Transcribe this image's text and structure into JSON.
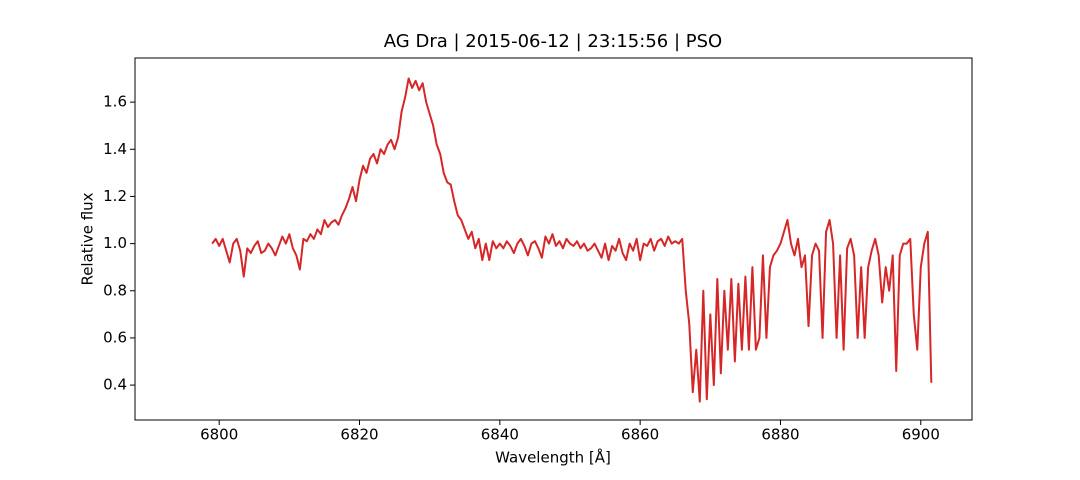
{
  "chart_data": {
    "type": "line",
    "title": "AG Dra | 2015-06-12 | 23:15:56 | PSO",
    "x_label": "Wavelength [Å]",
    "y_label": "Relative flux",
    "color": "#d62728",
    "xlim": [
      6788.0,
      6907.3
    ],
    "ylim": [
      0.252,
      1.787
    ],
    "xticks": [
      6800,
      6820,
      6840,
      6860,
      6880,
      6900
    ],
    "yticks": [
      0.4,
      0.6,
      0.8,
      {
        "value": 1,
        "label": "1.0"
      },
      1.2,
      1.4,
      1.6
    ],
    "x": [
      6799,
      6799.5,
      6800,
      6800.5,
      6801,
      6801.5,
      6802,
      6802.5,
      6803,
      6803.5,
      6804,
      6804.5,
      6805,
      6805.5,
      6806,
      6806.5,
      6807,
      6807.5,
      6808,
      6808.5,
      6809,
      6809.5,
      6810,
      6810.5,
      6811,
      6811.5,
      6812,
      6812.5,
      6813,
      6813.5,
      6814,
      6814.5,
      6815,
      6815.5,
      6816,
      6816.5,
      6817,
      6817.5,
      6818,
      6818.5,
      6819,
      6819.5,
      6820,
      6820.5,
      6821,
      6821.5,
      6822,
      6822.5,
      6823,
      6823.5,
      6824,
      6824.5,
      6825,
      6825.5,
      6826,
      6826.5,
      6827,
      6827.5,
      6828,
      6828.5,
      6829,
      6829.5,
      6830,
      6830.5,
      6831,
      6831.5,
      6832,
      6832.5,
      6833,
      6833.5,
      6834,
      6834.5,
      6835,
      6835.5,
      6836,
      6836.5,
      6837,
      6837.5,
      6838,
      6838.5,
      6839,
      6839.5,
      6840,
      6840.5,
      6841,
      6841.5,
      6842,
      6842.5,
      6843,
      6843.5,
      6844,
      6844.5,
      6845,
      6845.5,
      6846,
      6846.5,
      6847,
      6847.5,
      6848,
      6848.5,
      6849,
      6849.5,
      6850,
      6850.5,
      6851,
      6851.5,
      6852,
      6852.5,
      6853,
      6853.5,
      6854,
      6854.5,
      6855,
      6855.5,
      6856,
      6856.5,
      6857,
      6857.5,
      6858,
      6858.5,
      6859,
      6859.5,
      6860,
      6860.5,
      6861,
      6861.5,
      6862,
      6862.5,
      6863,
      6863.5,
      6864,
      6864.5,
      6865,
      6865.5,
      6866,
      6866.5,
      6867,
      6867.5,
      6868,
      6868.5,
      6869,
      6869.5,
      6870,
      6870.5,
      6871,
      6871.5,
      6872,
      6872.5,
      6873,
      6873.5,
      6874,
      6874.5,
      6875,
      6875.5,
      6876,
      6876.5,
      6877,
      6877.5,
      6878,
      6878.5,
      6879,
      6879.5,
      6880,
      6880.5,
      6881,
      6881.5,
      6882,
      6882.5,
      6883,
      6883.5,
      6884,
      6884.5,
      6885,
      6885.5,
      6886,
      6886.5,
      6887,
      6887.5,
      6888,
      6888.5,
      6889,
      6889.5,
      6890,
      6890.5,
      6891,
      6891.5,
      6892,
      6892.5,
      6893,
      6893.5,
      6894,
      6894.5,
      6895,
      6895.5,
      6896,
      6896.5,
      6897,
      6897.5,
      6898,
      6898.5,
      6899,
      6899.5,
      6900,
      6900.5,
      6901,
      6901.5
    ],
    "values": [
      1.0,
      1.02,
      0.99,
      1.02,
      0.97,
      0.92,
      1.0,
      1.02,
      0.97,
      0.86,
      0.98,
      0.96,
      0.99,
      1.01,
      0.96,
      0.97,
      1.0,
      0.98,
      0.95,
      0.99,
      1.03,
      1.0,
      1.04,
      0.98,
      0.95,
      0.89,
      1.02,
      1.01,
      1.04,
      1.02,
      1.06,
      1.04,
      1.1,
      1.07,
      1.09,
      1.1,
      1.08,
      1.12,
      1.15,
      1.19,
      1.24,
      1.18,
      1.27,
      1.33,
      1.3,
      1.36,
      1.38,
      1.34,
      1.4,
      1.38,
      1.42,
      1.44,
      1.4,
      1.45,
      1.56,
      1.62,
      1.7,
      1.66,
      1.69,
      1.65,
      1.68,
      1.6,
      1.55,
      1.5,
      1.42,
      1.38,
      1.3,
      1.26,
      1.25,
      1.18,
      1.12,
      1.1,
      1.06,
      1.02,
      1.05,
      0.98,
      1.02,
      0.93,
      1.0,
      0.93,
      1.01,
      0.98,
      1.0,
      0.98,
      1.01,
      0.99,
      0.96,
      1.0,
      1.02,
      0.99,
      0.95,
      1.0,
      1.01,
      0.98,
      0.94,
      1.03,
      1.0,
      1.04,
      0.99,
      1.01,
      0.98,
      1.02,
      1.0,
      0.99,
      1.01,
      0.98,
      1.0,
      0.97,
      0.98,
      1.0,
      0.97,
      0.94,
      1.0,
      0.93,
      0.99,
      0.97,
      1.02,
      0.96,
      0.93,
      1.0,
      0.97,
      1.02,
      0.93,
      1.0,
      0.99,
      1.02,
      0.97,
      1.01,
      1.02,
      0.99,
      1.03,
      1.0,
      1.01,
      1.0,
      1.02,
      0.8,
      0.66,
      0.37,
      0.55,
      0.33,
      0.8,
      0.34,
      0.7,
      0.4,
      0.85,
      0.45,
      0.8,
      0.55,
      0.85,
      0.5,
      0.83,
      0.55,
      0.86,
      0.55,
      0.9,
      0.55,
      0.6,
      0.95,
      0.6,
      0.9,
      0.95,
      0.97,
      1.0,
      1.05,
      1.1,
      1.0,
      0.95,
      1.02,
      0.9,
      0.95,
      0.65,
      0.95,
      1.0,
      0.97,
      0.6,
      1.05,
      1.1,
      1.0,
      0.6,
      0.95,
      0.55,
      0.98,
      1.02,
      0.95,
      0.6,
      0.9,
      0.6,
      0.9,
      0.97,
      1.02,
      0.95,
      0.75,
      0.9,
      0.8,
      0.95,
      0.46,
      0.95,
      1.0,
      1.0,
      1.02,
      0.7,
      0.55,
      0.9,
      1.0,
      1.05,
      0.41
    ]
  }
}
